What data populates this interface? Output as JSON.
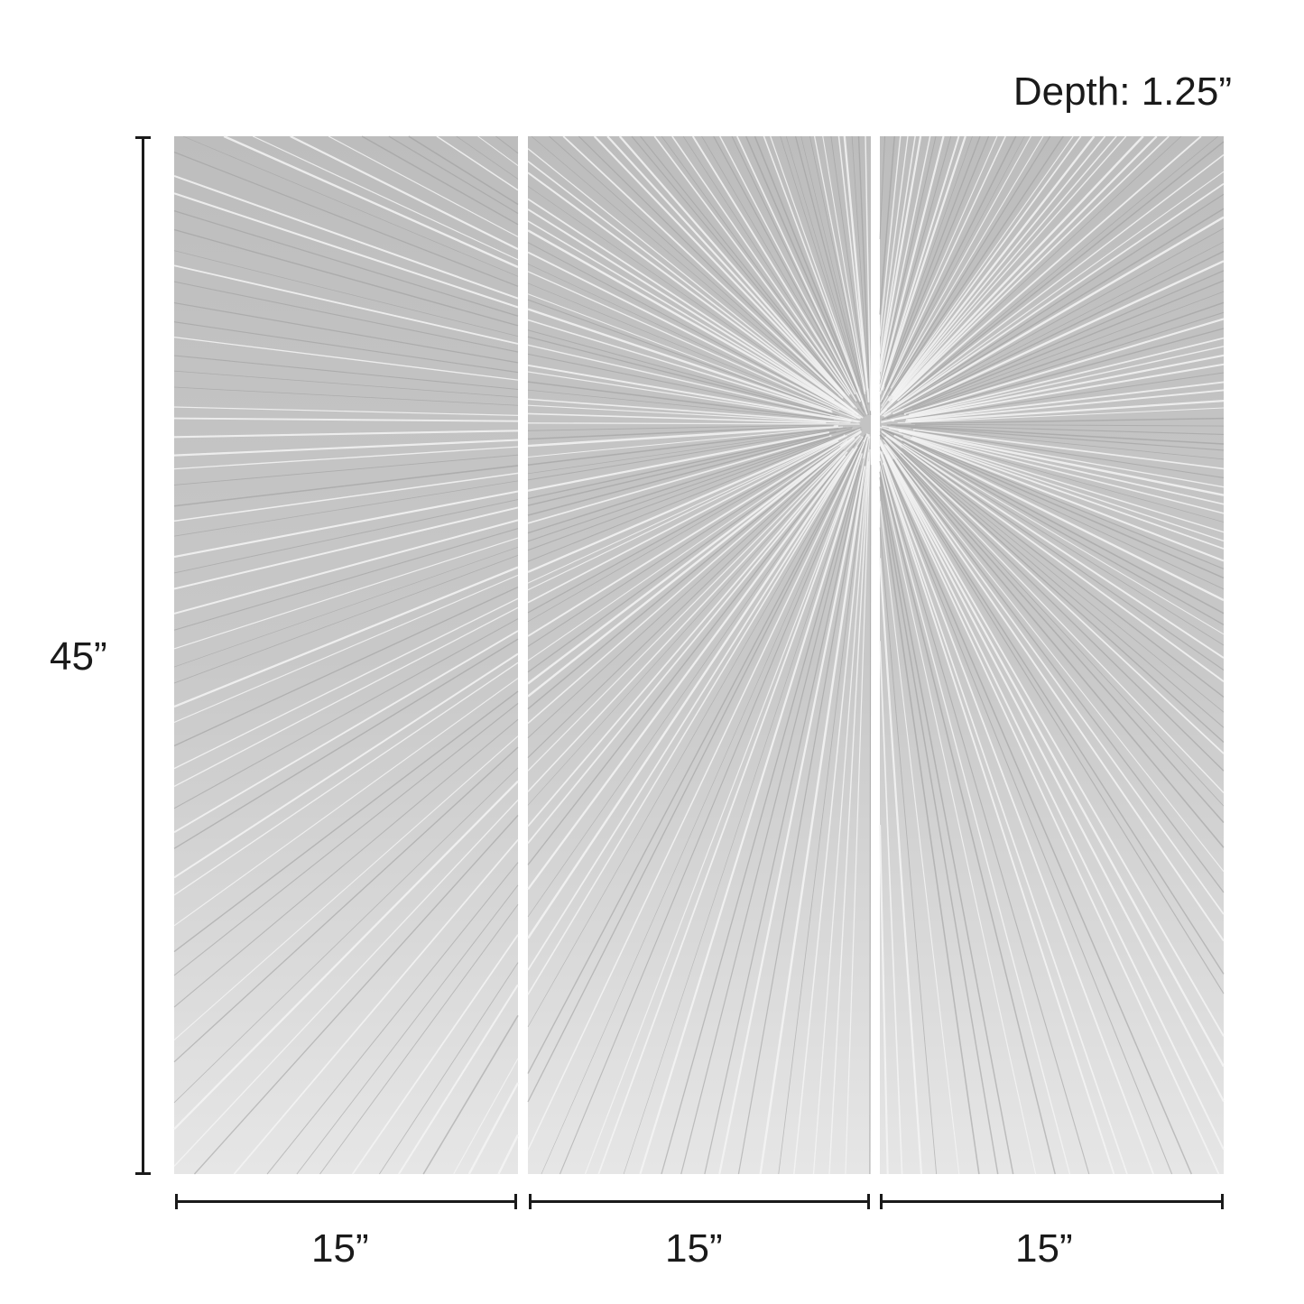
{
  "depth_label": "Depth: 1.25”",
  "height_label": "45”",
  "panels": [
    {
      "width_label": "15”"
    },
    {
      "width_label": "15”"
    },
    {
      "width_label": "15”"
    }
  ],
  "colors": {
    "panel_silver": "#c9c9c9",
    "highlight": "#f4f4f4",
    "dimension_line": "#1a1a1a"
  }
}
